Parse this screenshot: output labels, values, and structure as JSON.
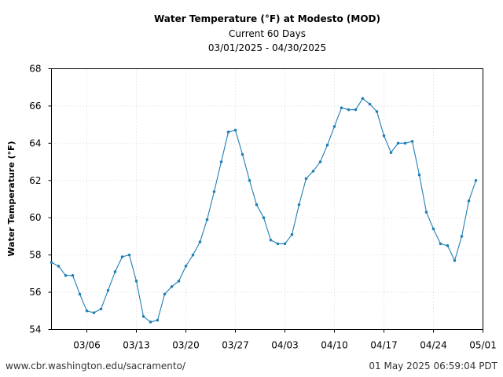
{
  "footer": {
    "url": "www.cbr.washington.edu/sacramento/",
    "timestamp": "01 May 2025 06:59:04 PDT"
  },
  "colors": {
    "series": "#1f7fb4",
    "grid": "#d4d4d4",
    "background": "#ffffff"
  },
  "chart_data": {
    "type": "line",
    "title": "Water Temperature (°F) at Modesto (MOD)",
    "subtitle_1": "Current 60 Days",
    "subtitle_2": "03/01/2025 - 04/30/2025",
    "xlabel": "",
    "ylabel": "Water Temperature (°F)",
    "xlim": [
      "2025-03-01",
      "2025-05-01"
    ],
    "ylim": [
      54,
      68
    ],
    "grid": true,
    "legend": "none",
    "x_ticks": [
      {
        "date": "2025-03-06",
        "label": "03/06"
      },
      {
        "date": "2025-03-13",
        "label": "03/13"
      },
      {
        "date": "2025-03-20",
        "label": "03/20"
      },
      {
        "date": "2025-03-27",
        "label": "03/27"
      },
      {
        "date": "2025-04-03",
        "label": "04/03"
      },
      {
        "date": "2025-04-10",
        "label": "04/10"
      },
      {
        "date": "2025-04-17",
        "label": "04/17"
      },
      {
        "date": "2025-04-24",
        "label": "04/24"
      },
      {
        "date": "2025-05-01",
        "label": "05/01"
      }
    ],
    "y_ticks": [
      54,
      56,
      58,
      60,
      62,
      64,
      66,
      68
    ],
    "series": [
      {
        "x": [
          "2025-03-01",
          "2025-03-02",
          "2025-03-03",
          "2025-03-04",
          "2025-03-05",
          "2025-03-06",
          "2025-03-07",
          "2025-03-08",
          "2025-03-09",
          "2025-03-10",
          "2025-03-11",
          "2025-03-12",
          "2025-03-13",
          "2025-03-14",
          "2025-03-15",
          "2025-03-16",
          "2025-03-17",
          "2025-03-18",
          "2025-03-19",
          "2025-03-20",
          "2025-03-21",
          "2025-03-22",
          "2025-03-23",
          "2025-03-24",
          "2025-03-25",
          "2025-03-26",
          "2025-03-27",
          "2025-03-28",
          "2025-03-29",
          "2025-03-30",
          "2025-03-31",
          "2025-04-01",
          "2025-04-02",
          "2025-04-03",
          "2025-04-04",
          "2025-04-05",
          "2025-04-06",
          "2025-04-07",
          "2025-04-08",
          "2025-04-09",
          "2025-04-10",
          "2025-04-11",
          "2025-04-12",
          "2025-04-13",
          "2025-04-14",
          "2025-04-15",
          "2025-04-16",
          "2025-04-17",
          "2025-04-18",
          "2025-04-19",
          "2025-04-20",
          "2025-04-21",
          "2025-04-22",
          "2025-04-23",
          "2025-04-24",
          "2025-04-25",
          "2025-04-26",
          "2025-04-27",
          "2025-04-28",
          "2025-04-29",
          "2025-04-30"
        ],
        "values": [
          57.6,
          57.4,
          56.9,
          56.9,
          55.9,
          55.0,
          54.9,
          55.1,
          56.1,
          57.1,
          57.9,
          58.0,
          56.6,
          54.7,
          54.4,
          54.5,
          55.9,
          56.3,
          56.6,
          57.4,
          58.0,
          58.7,
          59.9,
          61.4,
          63.0,
          64.6,
          64.7,
          63.4,
          62.0,
          60.7,
          60.0,
          58.8,
          58.6,
          58.6,
          59.1,
          60.7,
          62.1,
          62.5,
          63.0,
          63.9,
          64.9,
          65.9,
          65.8,
          65.8,
          66.4,
          66.1,
          65.7,
          64.4,
          63.5,
          64.0,
          64.0,
          64.1,
          62.3,
          60.3,
          59.4,
          58.6,
          58.5,
          57.7,
          59.0,
          60.9,
          62.0
        ]
      }
    ]
  }
}
